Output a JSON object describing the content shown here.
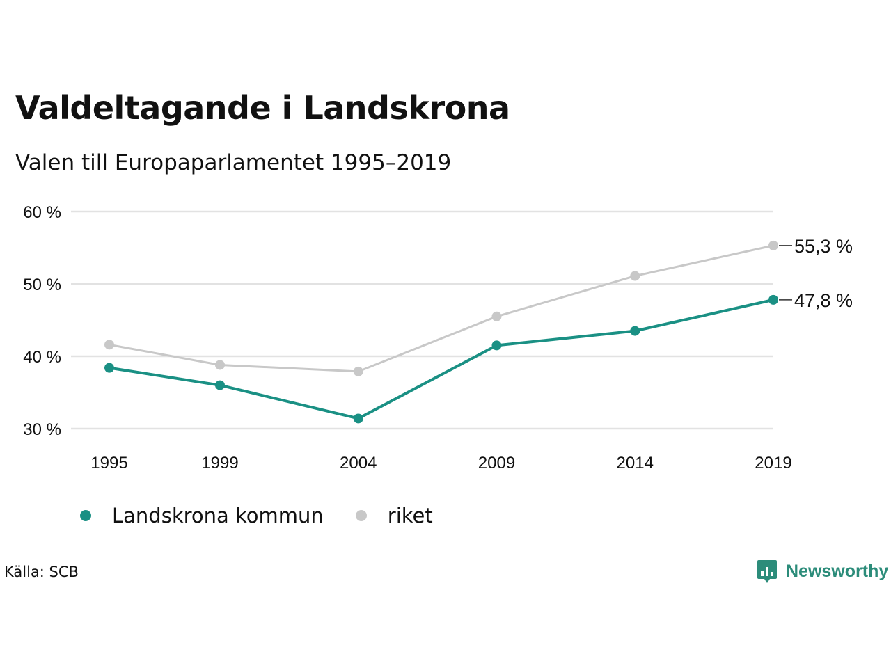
{
  "title": "Valdeltagande i Landskrona",
  "subtitle": "Valen till Europaparlamentet 1995–2019",
  "source": "Källa: SCB",
  "brand": {
    "name": "Newsworthy",
    "color": "#2c8c7a",
    "icon": "bar-chart-speech-bubble-icon"
  },
  "colors": {
    "landskrona": "#1a9084",
    "riket": "#c8c8c8",
    "grid": "#e2e2e2"
  },
  "chart_data": {
    "type": "line",
    "title": "Valdeltagande i Landskrona",
    "subtitle": "Valen till Europaparlamentet 1995–2019",
    "x": [
      1995,
      1999,
      2004,
      2009,
      2014,
      2019
    ],
    "x_labels": [
      "1995",
      "1999",
      "2004",
      "2009",
      "2014",
      "2019"
    ],
    "ylim": [
      30,
      60
    ],
    "y_ticks": [
      30,
      40,
      50,
      60
    ],
    "y_tick_labels": [
      "30 %",
      "40 %",
      "50 %",
      "60 %"
    ],
    "grid": true,
    "legend_position": "bottom-left",
    "series": [
      {
        "name": "Landskrona kommun",
        "values": [
          38.4,
          36.0,
          31.4,
          41.5,
          43.5,
          47.8
        ],
        "end_label": "47,8 %"
      },
      {
        "name": "riket",
        "values": [
          41.6,
          38.8,
          37.9,
          45.5,
          51.1,
          55.3
        ],
        "end_label": "55,3 %"
      }
    ]
  }
}
